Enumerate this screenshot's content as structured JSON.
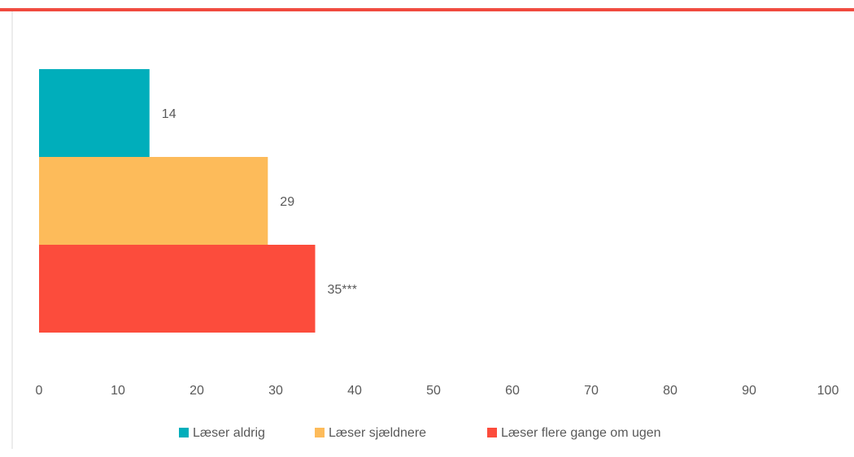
{
  "chart_data": {
    "type": "bar",
    "orientation": "horizontal",
    "categories": [
      null
    ],
    "series": [
      {
        "name": "Læser aldrig",
        "color": "#00aebb",
        "values": [
          14
        ]
      },
      {
        "name": "Læser sjældnere",
        "color": "#fdbb5a",
        "values": [
          29
        ]
      },
      {
        "name": "Læser flere gange om ugen",
        "color": "#fc4c3c",
        "values": [
          35
        ],
        "value_labels": [
          "35***"
        ]
      }
    ],
    "xlim": [
      0,
      100
    ],
    "xticks": [
      0,
      10,
      20,
      30,
      40,
      50,
      60,
      70,
      80,
      90,
      100
    ],
    "grid": false,
    "legend": "bottom"
  }
}
